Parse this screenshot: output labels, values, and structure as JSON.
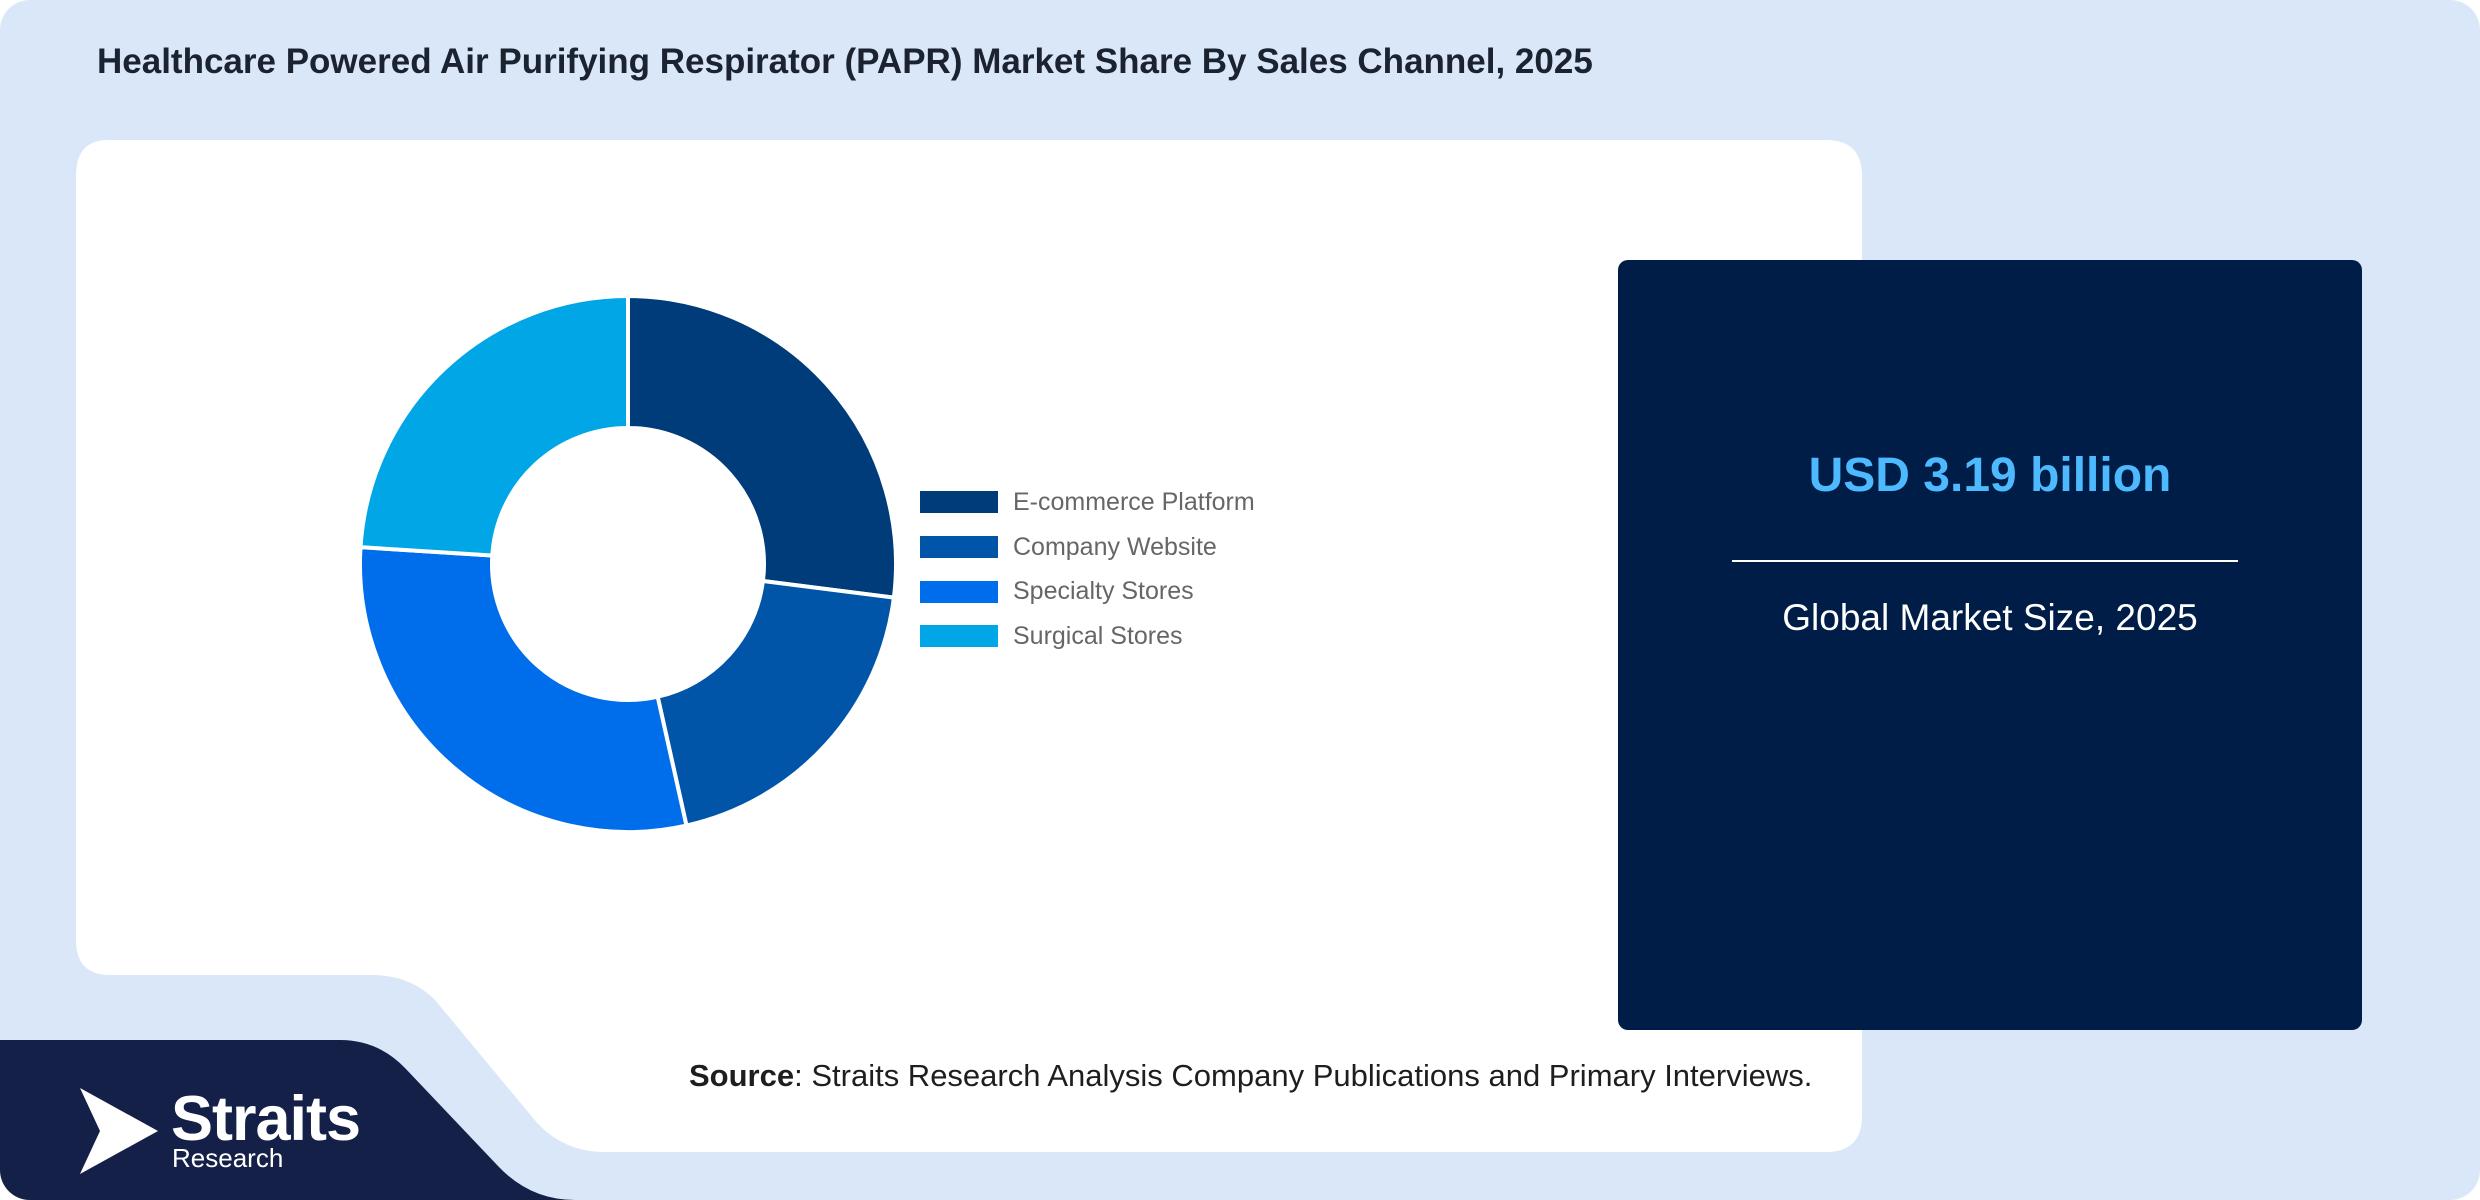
{
  "header": {
    "title": "Healthcare Powered Air Purifying Respirator (PAPR) Market Share By Sales Channel, 2025"
  },
  "summary": {
    "value": "USD 3.19 billion",
    "label": "Global Market Size, 2025"
  },
  "source": {
    "prefix": "Source",
    "text": ": Straits Research Analysis Company Publications and Primary Interviews."
  },
  "brand": {
    "name": "Straits",
    "sub": "Research"
  },
  "colors": {
    "background": "#dae7f8",
    "panel": "#001d47",
    "accent": "#4db9ff",
    "brand_dark": "#142048"
  },
  "chart_data": {
    "type": "pie",
    "variant": "donut",
    "categories": [
      "E-commerce Platform",
      "Company Website",
      "Specialty Stores",
      "Surgical Stores"
    ],
    "values": [
      27,
      19.5,
      29.5,
      24
    ],
    "unit": "%",
    "colors": [
      "#003b7a",
      "#0055a8",
      "#006eeb",
      "#00a6e6"
    ],
    "legend_position": "right"
  }
}
